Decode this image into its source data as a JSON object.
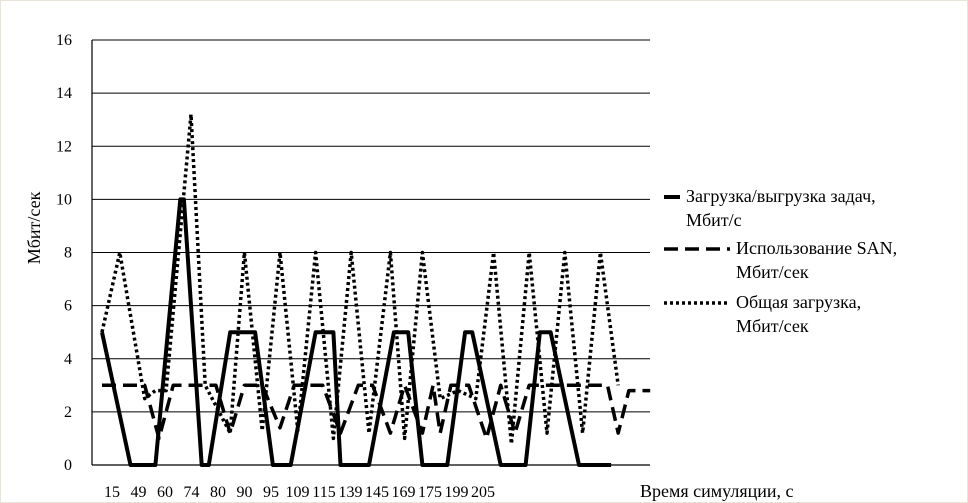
{
  "chart_data": {
    "type": "line",
    "title": "",
    "ylabel": "Мбит/сек",
    "xlabel": "Время симуляции, с",
    "ylim": [
      0,
      16
    ],
    "yticks": [
      "0",
      "2",
      "4",
      "6",
      "8",
      "10",
      "12",
      "14",
      "16"
    ],
    "grid": "horizontal",
    "legend_position": "right",
    "categories": [
      "15",
      "49",
      "60",
      "74",
      "80",
      "90",
      "95",
      "109",
      "115",
      "139",
      "145",
      "169",
      "175",
      "199",
      "205"
    ],
    "series": [
      {
        "name": "Загрузка/выгрузка задач, Мбит/с",
        "style": "solid",
        "x": [
          0,
          0.8,
          1.5,
          2.2,
          2.3,
          2.8,
          3.0,
          3.6,
          4.3,
          4.8,
          5.3,
          6.0,
          6.5,
          6.7,
          7.5,
          8.2,
          8.6,
          9.0,
          9.7,
          10.2,
          10.4,
          11.2,
          11.9,
          12.3,
          12.6,
          13.4,
          14.1,
          14.3
        ],
        "values": [
          5,
          0,
          0,
          10,
          10,
          0,
          0,
          5,
          5,
          0,
          0,
          5,
          5,
          0,
          0,
          5,
          5,
          0,
          0,
          5,
          5,
          0,
          0,
          5,
          5,
          0,
          0,
          0
        ]
      },
      {
        "name": "Использование SAN, Мбит/сек",
        "style": "dashed",
        "x": [
          0,
          1.2,
          1.6,
          2.0,
          2.3,
          2.8,
          3.2,
          3.6,
          4.0,
          4.5,
          5.0,
          5.4,
          5.8,
          6.2,
          6.7,
          7.2,
          7.6,
          8.1,
          8.5,
          9.0,
          9.3,
          9.5,
          9.8,
          10.0,
          10.3,
          10.8,
          11.2,
          11.6,
          12.0,
          12.3,
          12.8,
          13.2,
          13.6,
          14.2,
          14.5,
          14.8,
          15.4
        ],
        "values": [
          3,
          3,
          1,
          3,
          3,
          3,
          3,
          1.2,
          3,
          3,
          1.4,
          3,
          3,
          3,
          1.2,
          3,
          3,
          1.2,
          3,
          1.2,
          3,
          1.2,
          3,
          3,
          3,
          1,
          3,
          1.2,
          3,
          3,
          3,
          3,
          3,
          3,
          1.2,
          2.8,
          2.8
        ]
      },
      {
        "name": "Общая загрузка, Мбит/сек",
        "style": "dotted",
        "x": [
          0,
          0.5,
          1.2,
          1.5,
          1.8,
          2.5,
          2.9,
          3.6,
          4.0,
          4.5,
          5.0,
          5.5,
          6.0,
          6.5,
          7.0,
          7.5,
          8.1,
          8.5,
          9.0,
          9.5,
          10.0,
          10.5,
          11.0,
          11.5,
          12.0,
          12.5,
          13.0,
          13.5,
          14.0,
          14.5
        ],
        "values": [
          5,
          8,
          2.5,
          2.8,
          2.8,
          13.2,
          3,
          1.2,
          8,
          1.3,
          8,
          1.3,
          8,
          1,
          8,
          1.2,
          8,
          1,
          8,
          2.5,
          2.8,
          2.5,
          8,
          0.8,
          8,
          1.2,
          8,
          1.2,
          8,
          3
        ]
      }
    ]
  }
}
